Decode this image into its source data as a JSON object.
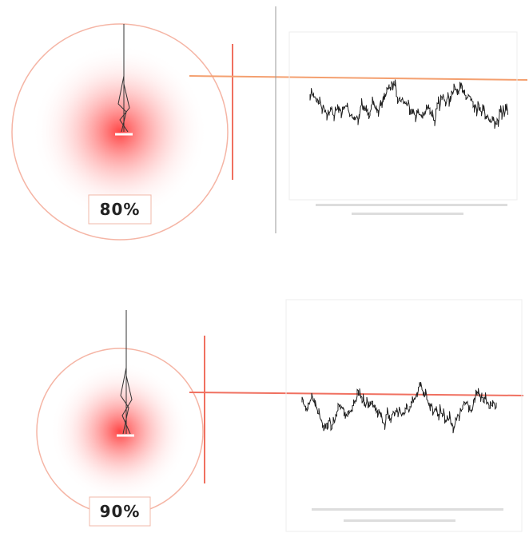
{
  "panels": [
    {
      "label": "80%"
    },
    {
      "label": "90%"
    }
  ]
}
